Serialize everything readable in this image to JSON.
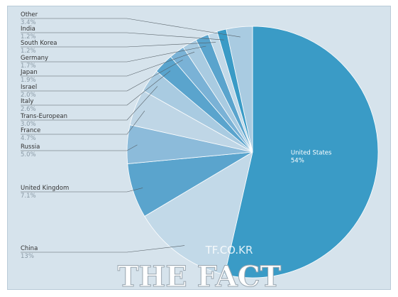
{
  "chart_data": {
    "type": "pie",
    "slices": [
      {
        "label": "United States",
        "value": 54,
        "pct_text": "54%",
        "color": "#3a9bc6"
      },
      {
        "label": "China",
        "value": 13,
        "pct_text": "13%",
        "color": "#c2d9e8"
      },
      {
        "label": "United Kingdom",
        "value": 7.1,
        "pct_text": "7.1%",
        "color": "#5aa4cd"
      },
      {
        "label": "Russia",
        "value": 5.0,
        "pct_text": "5.0%",
        "color": "#8cbbda"
      },
      {
        "label": "France",
        "value": 4.7,
        "pct_text": "4.7%",
        "color": "#bfd6e6"
      },
      {
        "label": "Trans-European",
        "value": 3.0,
        "pct_text": "3.0%",
        "color": "#a9cbe1"
      },
      {
        "label": "Italy",
        "value": 2.6,
        "pct_text": "2.6%",
        "color": "#5aa4cd"
      },
      {
        "label": "Israel",
        "value": 2.0,
        "pct_text": "2.0%",
        "color": "#7ab2d6"
      },
      {
        "label": "Japan",
        "value": 1.9,
        "pct_text": "1.9%",
        "color": "#a9cbe1"
      },
      {
        "label": "Germany",
        "value": 1.7,
        "pct_text": "1.7%",
        "color": "#5aa4cd"
      },
      {
        "label": "South Korea",
        "value": 1.2,
        "pct_text": "1.2%",
        "color": "#c2d9e8"
      },
      {
        "label": "India",
        "value": 1.2,
        "pct_text": "1.2%",
        "color": "#3a9bc6"
      },
      {
        "label": "Other",
        "value": 3.4,
        "pct_text": "3.4%",
        "color": "#a9cbe1"
      }
    ]
  },
  "watermark": {
    "site": "TF.CO.KR",
    "brand": "THE FACT"
  }
}
